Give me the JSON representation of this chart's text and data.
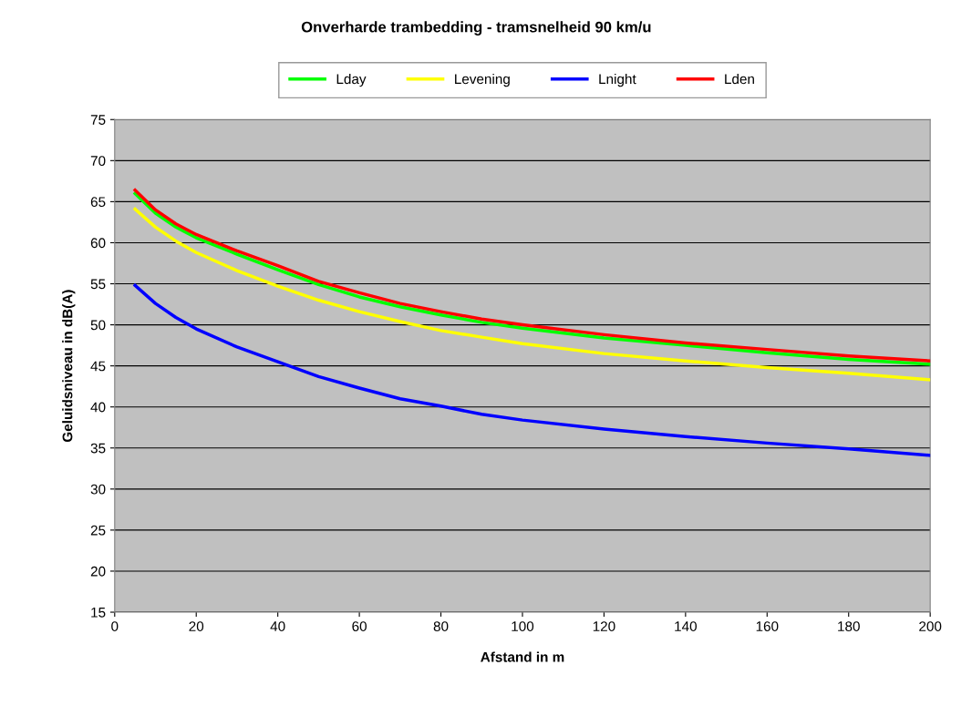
{
  "chart_data": {
    "type": "line",
    "title": "Onverharde trambedding - tramsnelheid 90 km/u",
    "xlabel": "Afstand in m",
    "ylabel": "Geluidsniveau in dB(A)",
    "x": [
      5,
      10,
      15,
      20,
      30,
      40,
      50,
      60,
      70,
      80,
      90,
      100,
      120,
      140,
      160,
      180,
      200
    ],
    "series": [
      {
        "name": "Lday",
        "color": "#00ff00",
        "values": [
          66.0,
          63.6,
          61.9,
          60.6,
          58.6,
          56.7,
          54.9,
          53.4,
          52.2,
          51.2,
          50.3,
          49.6,
          48.4,
          47.5,
          46.6,
          45.8,
          45.2
        ]
      },
      {
        "name": "Levening",
        "color": "#ffff00",
        "values": [
          64.1,
          61.9,
          60.2,
          58.8,
          56.6,
          54.7,
          53.0,
          51.6,
          50.4,
          49.3,
          48.5,
          47.7,
          46.5,
          45.6,
          44.8,
          44.1,
          43.3
        ]
      },
      {
        "name": "Lnight",
        "color": "#0000ff",
        "values": [
          54.8,
          52.6,
          50.9,
          49.5,
          47.3,
          45.5,
          43.7,
          42.3,
          41.0,
          40.1,
          39.1,
          38.4,
          37.3,
          36.4,
          35.6,
          34.9,
          34.1
        ]
      },
      {
        "name": "Lden",
        "color": "#ff0000",
        "values": [
          66.4,
          64.0,
          62.3,
          61.0,
          59.0,
          57.2,
          55.3,
          53.9,
          52.6,
          51.6,
          50.7,
          50.0,
          48.8,
          47.8,
          47.0,
          46.2,
          45.6
        ]
      }
    ],
    "xlim": [
      0,
      200
    ],
    "xticks": [
      0,
      20,
      40,
      60,
      80,
      100,
      120,
      140,
      160,
      180,
      200
    ],
    "ylim": [
      15,
      75
    ],
    "yticks": [
      15,
      20,
      25,
      30,
      35,
      40,
      45,
      50,
      55,
      60,
      65,
      70,
      75
    ],
    "grid": "y",
    "legend": "top",
    "marker": "none",
    "line_style": "solid"
  }
}
